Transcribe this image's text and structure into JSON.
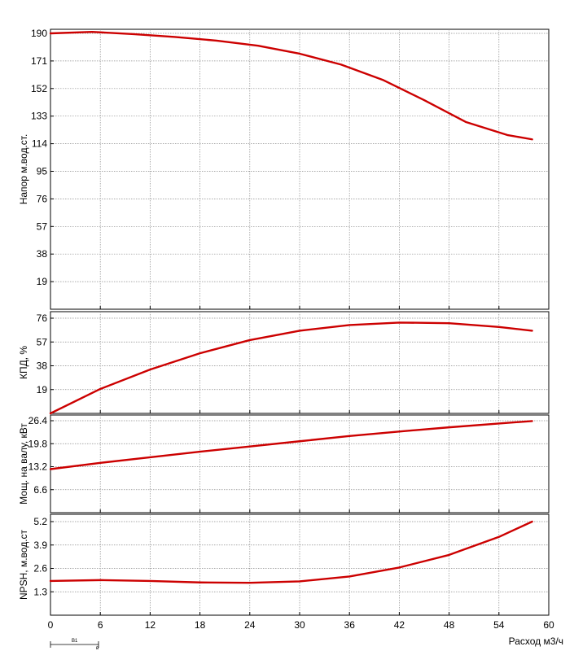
{
  "chart_data": [
    {
      "type": "line",
      "ylabel": "Напор м.вод.ст.",
      "ylim": [
        0,
        190
      ],
      "yticks": [
        19,
        38,
        57,
        76,
        95,
        114,
        133,
        152,
        171,
        190
      ],
      "xlim": [
        0,
        60
      ],
      "grid": true,
      "line_color": "#cc0000",
      "series": [
        {
          "x": [
            0,
            5,
            10,
            15,
            20,
            25,
            30,
            35,
            40,
            45,
            50,
            55,
            58
          ],
          "y": [
            190,
            191,
            189.5,
            187.5,
            185,
            181.5,
            176,
            168.5,
            158,
            144,
            129,
            120,
            117
          ]
        }
      ]
    },
    {
      "type": "line",
      "ylabel": "КПД, %",
      "ylim": [
        0,
        76
      ],
      "yticks": [
        19,
        38,
        57,
        76
      ],
      "xlim": [
        0,
        60
      ],
      "grid": true,
      "line_color": "#cc0000",
      "series": [
        {
          "x": [
            0,
            6,
            12,
            18,
            24,
            30,
            36,
            42,
            48,
            54,
            58
          ],
          "y": [
            0,
            19.5,
            35,
            48,
            58.5,
            66,
            70.5,
            72.5,
            72,
            69,
            66
          ]
        }
      ]
    },
    {
      "type": "line",
      "ylabel": "Мощ. на валу, кВт",
      "ylim": [
        0,
        26.4
      ],
      "yticks": [
        6.6,
        13.2,
        19.8,
        26.4
      ],
      "xlim": [
        0,
        60
      ],
      "grid": true,
      "line_color": "#cc0000",
      "series": [
        {
          "x": [
            0,
            6,
            12,
            18,
            24,
            30,
            36,
            42,
            48,
            54,
            58
          ],
          "y": [
            12.5,
            14.3,
            15.9,
            17.5,
            19.0,
            20.5,
            22.0,
            23.3,
            24.5,
            25.6,
            26.3
          ]
        }
      ]
    },
    {
      "type": "line",
      "ylabel": "NPSH, м.вод.ст",
      "xlabel": "Расход м3/ч",
      "ylim": [
        0,
        5.2
      ],
      "yticks": [
        1.3,
        2.6,
        3.9,
        5.2
      ],
      "xlim": [
        0,
        60
      ],
      "xticks": [
        0,
        6,
        12,
        18,
        24,
        30,
        36,
        42,
        48,
        54,
        60
      ],
      "grid": true,
      "line_color": "#cc0000",
      "series": [
        {
          "x": [
            0,
            6,
            12,
            18,
            24,
            30,
            36,
            42,
            48,
            54,
            58
          ],
          "y": [
            1.9,
            1.95,
            1.9,
            1.82,
            1.8,
            1.88,
            2.15,
            2.65,
            3.35,
            4.35,
            5.2
          ]
        }
      ]
    }
  ],
  "annotation": {
    "label": "В1",
    "sublabel": "в"
  }
}
